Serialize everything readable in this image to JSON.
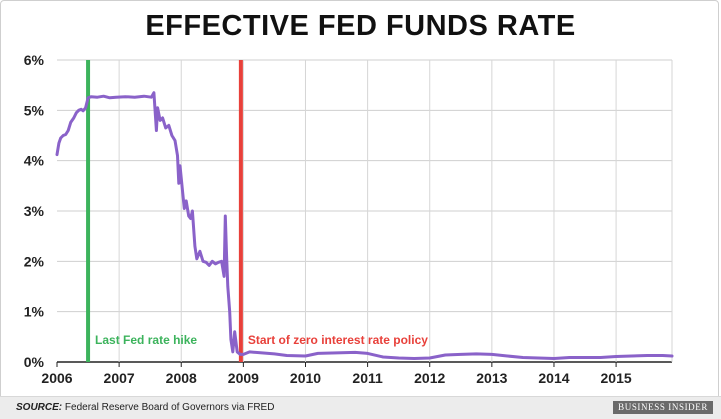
{
  "chart_data": {
    "type": "line",
    "title": "EFFECTIVE FED FUNDS RATE",
    "xlim": [
      2006,
      2015.9
    ],
    "ylim": [
      0,
      6
    ],
    "x_ticks": [
      2006,
      2007,
      2008,
      2009,
      2010,
      2011,
      2012,
      2013,
      2014,
      2015
    ],
    "x_tick_labels": [
      "2006",
      "2007",
      "2008",
      "2009",
      "2010",
      "2011",
      "2012",
      "2013",
      "2014",
      "2015"
    ],
    "y_ticks": [
      0,
      1,
      2,
      3,
      4,
      5,
      6
    ],
    "y_tick_labels": [
      "0%",
      "1%",
      "2%",
      "3%",
      "4%",
      "5%",
      "6%"
    ],
    "grid": true,
    "series": [
      {
        "color": "#8a62c9",
        "points": [
          [
            2006.0,
            4.12
          ],
          [
            2006.03,
            4.35
          ],
          [
            2006.06,
            4.45
          ],
          [
            2006.1,
            4.5
          ],
          [
            2006.14,
            4.52
          ],
          [
            2006.18,
            4.6
          ],
          [
            2006.22,
            4.76
          ],
          [
            2006.27,
            4.85
          ],
          [
            2006.31,
            4.95
          ],
          [
            2006.35,
            5.0
          ],
          [
            2006.39,
            5.02
          ],
          [
            2006.42,
            4.99
          ],
          [
            2006.46,
            5.05
          ],
          [
            2006.5,
            5.25
          ],
          [
            2006.55,
            5.27
          ],
          [
            2006.65,
            5.26
          ],
          [
            2006.75,
            5.28
          ],
          [
            2006.85,
            5.25
          ],
          [
            2006.95,
            5.26
          ],
          [
            2007.1,
            5.27
          ],
          [
            2007.25,
            5.26
          ],
          [
            2007.4,
            5.28
          ],
          [
            2007.52,
            5.26
          ],
          [
            2007.56,
            5.35
          ],
          [
            2007.6,
            4.6
          ],
          [
            2007.62,
            5.05
          ],
          [
            2007.66,
            4.8
          ],
          [
            2007.7,
            4.85
          ],
          [
            2007.75,
            4.65
          ],
          [
            2007.8,
            4.7
          ],
          [
            2007.85,
            4.5
          ],
          [
            2007.9,
            4.4
          ],
          [
            2007.94,
            4.1
          ],
          [
            2007.96,
            3.55
          ],
          [
            2007.98,
            3.9
          ],
          [
            2008.02,
            3.4
          ],
          [
            2008.05,
            3.05
          ],
          [
            2008.08,
            3.2
          ],
          [
            2008.12,
            2.9
          ],
          [
            2008.15,
            2.85
          ],
          [
            2008.18,
            3.0
          ],
          [
            2008.22,
            2.3
          ],
          [
            2008.25,
            2.05
          ],
          [
            2008.3,
            2.2
          ],
          [
            2008.35,
            2.0
          ],
          [
            2008.4,
            1.98
          ],
          [
            2008.45,
            1.92
          ],
          [
            2008.5,
            2.0
          ],
          [
            2008.55,
            1.95
          ],
          [
            2008.6,
            1.98
          ],
          [
            2008.65,
            2.0
          ],
          [
            2008.69,
            1.7
          ],
          [
            2008.71,
            2.9
          ],
          [
            2008.73,
            2.1
          ],
          [
            2008.75,
            1.5
          ],
          [
            2008.78,
            1.0
          ],
          [
            2008.8,
            0.45
          ],
          [
            2008.83,
            0.2
          ],
          [
            2008.86,
            0.6
          ],
          [
            2008.9,
            0.2
          ],
          [
            2008.95,
            0.15
          ],
          [
            2009.0,
            0.15
          ],
          [
            2009.1,
            0.2
          ],
          [
            2009.3,
            0.18
          ],
          [
            2009.5,
            0.16
          ],
          [
            2009.7,
            0.13
          ],
          [
            2010.0,
            0.12
          ],
          [
            2010.2,
            0.17
          ],
          [
            2010.5,
            0.18
          ],
          [
            2010.8,
            0.19
          ],
          [
            2011.0,
            0.17
          ],
          [
            2011.25,
            0.1
          ],
          [
            2011.5,
            0.08
          ],
          [
            2011.75,
            0.07
          ],
          [
            2012.0,
            0.08
          ],
          [
            2012.25,
            0.14
          ],
          [
            2012.5,
            0.15
          ],
          [
            2012.75,
            0.16
          ],
          [
            2013.0,
            0.15
          ],
          [
            2013.25,
            0.12
          ],
          [
            2013.5,
            0.09
          ],
          [
            2013.75,
            0.08
          ],
          [
            2014.0,
            0.07
          ],
          [
            2014.25,
            0.09
          ],
          [
            2014.5,
            0.09
          ],
          [
            2014.75,
            0.09
          ],
          [
            2015.0,
            0.11
          ],
          [
            2015.25,
            0.12
          ],
          [
            2015.5,
            0.13
          ],
          [
            2015.75,
            0.13
          ],
          [
            2015.9,
            0.12
          ]
        ]
      }
    ],
    "annotations": [
      {
        "x": 2006.5,
        "color": "#3cb35c",
        "text": "Last Fed rate hike"
      },
      {
        "x": 2008.96,
        "color": "#e8403a",
        "text": "Start of zero interest rate policy"
      }
    ]
  },
  "footer": {
    "source_label": "SOURCE:",
    "source_text": "Federal Reserve Board of Governors via FRED",
    "logo_text": "BUSINESS INSIDER"
  }
}
